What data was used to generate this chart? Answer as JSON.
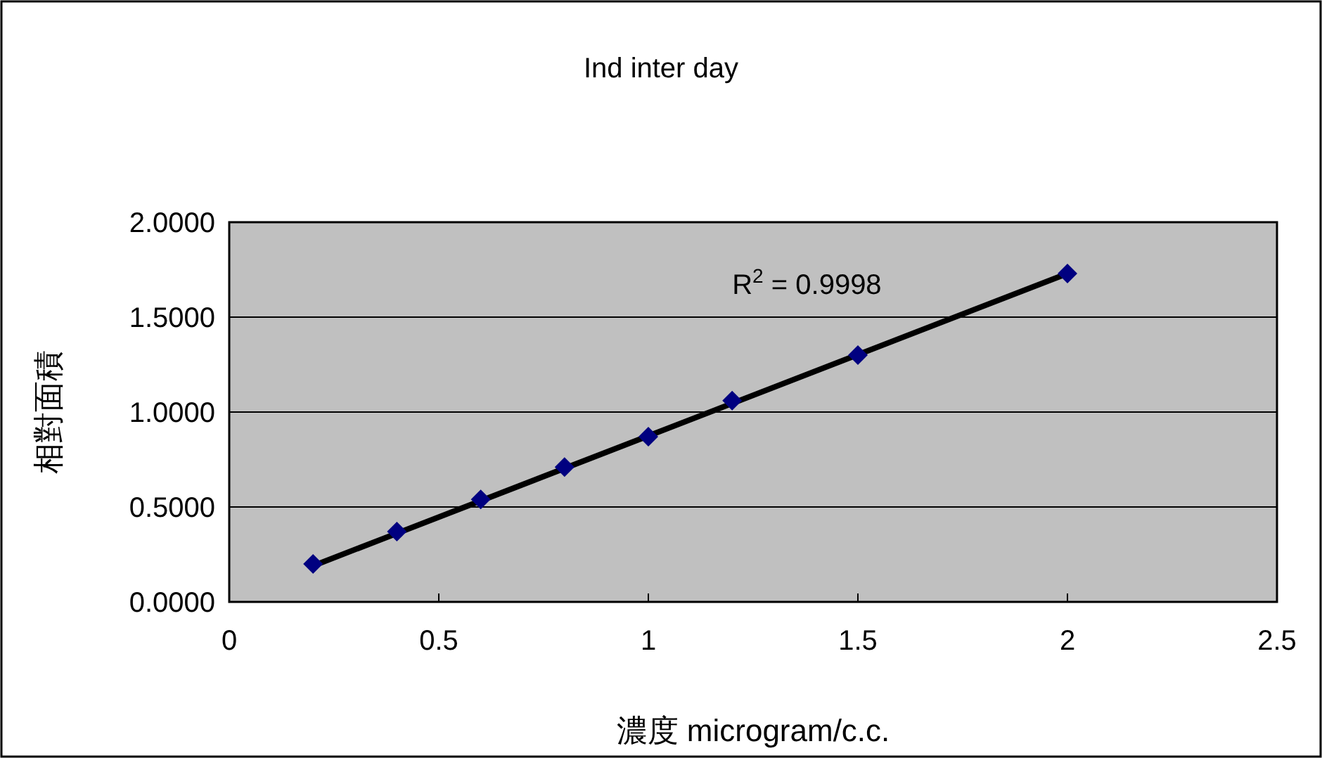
{
  "chart_data": {
    "type": "scatter",
    "title": "Ind inter day",
    "xlabel": "濃度 microgram/c.c.",
    "ylabel": "相對面積",
    "xlim": [
      0,
      2.5
    ],
    "xticks": [
      0,
      0.5,
      1,
      1.5,
      2,
      2.5
    ],
    "ylim": [
      0,
      2
    ],
    "yticks": [
      {
        "value": 0,
        "label": "0.0000"
      },
      {
        "value": 0.5,
        "label": "0.5000"
      },
      {
        "value": 1,
        "label": "1.0000"
      },
      {
        "value": 1.5,
        "label": "1.5000"
      },
      {
        "value": 2,
        "label": "2.0000"
      }
    ],
    "grid": "y",
    "series": [
      {
        "type": "line",
        "color": "#000000",
        "marker": "none",
        "line_style": "solid",
        "x": [
          0.2,
          2.0
        ],
        "values": [
          0.19,
          1.73
        ]
      },
      {
        "color": "#000080",
        "marker": "diamond",
        "x": [
          0.2,
          0.4,
          0.6,
          0.8,
          1.0,
          1.2,
          1.5,
          2.0
        ],
        "values": [
          0.2,
          0.37,
          0.54,
          0.71,
          0.87,
          1.06,
          1.3,
          1.73
        ]
      }
    ],
    "annotations": [
      "R$^{2}$ = 0.9998"
    ]
  }
}
